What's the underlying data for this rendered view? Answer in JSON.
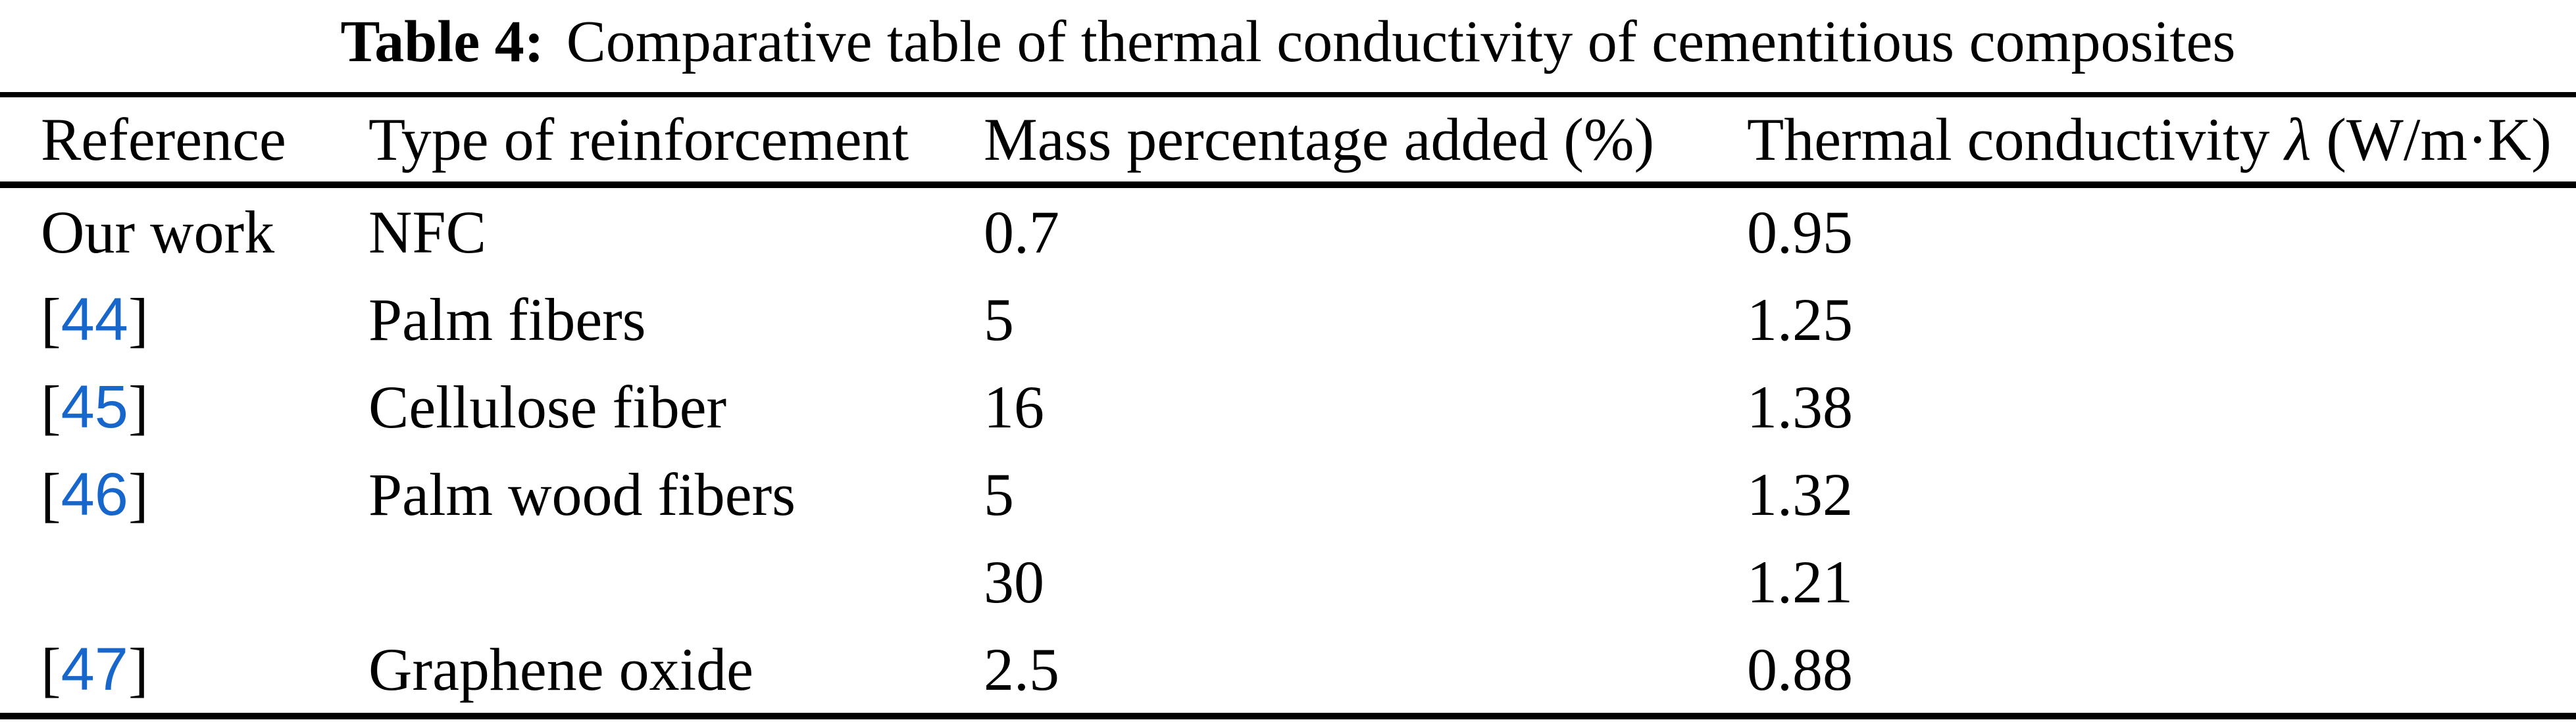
{
  "caption": {
    "label": "Table 4:",
    "text": "Comparative table of thermal conductivity of cementitious composites"
  },
  "table": {
    "columns": [
      {
        "pre": "Reference",
        "symbol": "",
        "post": ""
      },
      {
        "pre": "Type of reinforcement",
        "symbol": "",
        "post": ""
      },
      {
        "pre": "Mass percentage added (%)",
        "symbol": "",
        "post": ""
      },
      {
        "pre": "Thermal conductivity ",
        "symbol": "λ",
        "post": " (W/m·K)"
      }
    ],
    "rows": [
      {
        "reference": {
          "open": "",
          "label": "Our work",
          "close": "",
          "link": "false"
        },
        "type": "NFC",
        "mass_percentage": "0.7",
        "thermal_conductivity": "0.95"
      },
      {
        "reference": {
          "open": "[",
          "label": "44",
          "close": "]",
          "link": "true"
        },
        "type": "Palm fibers",
        "mass_percentage": "5",
        "thermal_conductivity": "1.25"
      },
      {
        "reference": {
          "open": "[",
          "label": "45",
          "close": "]",
          "link": "true"
        },
        "type": "Cellulose fiber",
        "mass_percentage": "16",
        "thermal_conductivity": "1.38"
      },
      {
        "reference": {
          "open": "[",
          "label": "46",
          "close": "]",
          "link": "true"
        },
        "type": "Palm wood fibers",
        "mass_percentage": "5",
        "thermal_conductivity": "1.32"
      },
      {
        "reference": {
          "open": "",
          "label": "",
          "close": "",
          "link": "false"
        },
        "type": "",
        "mass_percentage": "30",
        "thermal_conductivity": "1.21"
      },
      {
        "reference": {
          "open": "[",
          "label": "47",
          "close": "]",
          "link": "true"
        },
        "type": "Graphene oxide",
        "mass_percentage": "2.5",
        "thermal_conductivity": "0.88"
      }
    ]
  },
  "colors": {
    "background": "#FFFFFF",
    "text": "#000000",
    "rule": "#000000",
    "citation_link": "#1666CB"
  }
}
